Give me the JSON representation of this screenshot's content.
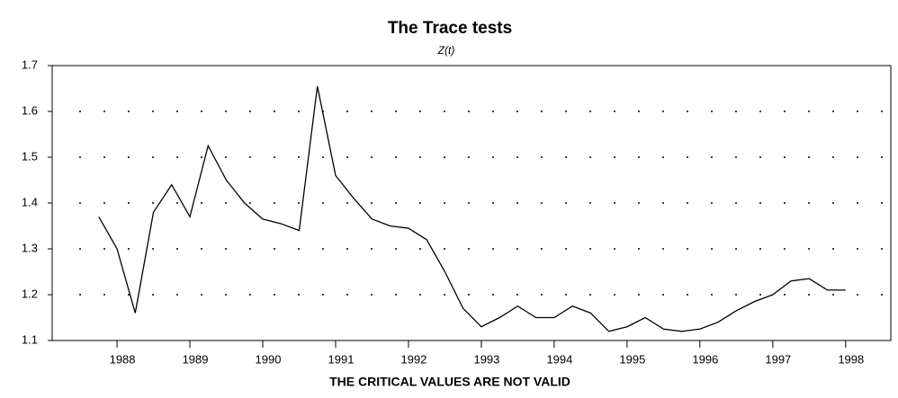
{
  "chart_data": {
    "type": "line",
    "title": "The Trace tests",
    "subtitle": "Z(t)",
    "xlabel": "THE CRITICAL VALUES ARE NOT VALID",
    "x": [
      1987.75,
      1988,
      1988.25,
      1988.5,
      1988.75,
      1989,
      1989.25,
      1989.5,
      1989.75,
      1990,
      1990.25,
      1990.5,
      1990.75,
      1991,
      1991.25,
      1991.5,
      1991.75,
      1992,
      1992.25,
      1992.5,
      1992.75,
      1993,
      1993.25,
      1993.5,
      1993.75,
      1994,
      1994.25,
      1994.5,
      1994.75,
      1995,
      1995.25,
      1995.5,
      1995.75,
      1996,
      1996.25,
      1996.5,
      1996.75,
      1997,
      1997.25,
      1997.5,
      1997.75,
      1998
    ],
    "series": [
      {
        "name": "Z(t)",
        "color": "#000000",
        "values": [
          1.37,
          1.3,
          1.16,
          1.38,
          1.44,
          1.37,
          1.525,
          1.45,
          1.4,
          1.365,
          1.355,
          1.34,
          1.655,
          1.46,
          1.41,
          1.365,
          1.35,
          1.345,
          1.32,
          1.25,
          1.17,
          1.13,
          1.15,
          1.175,
          1.15,
          1.15,
          1.175,
          1.16,
          1.12,
          1.13,
          1.15,
          1.125,
          1.12,
          1.125,
          1.14,
          1.165,
          1.185,
          1.2,
          1.23,
          1.235,
          1.21,
          1.21
        ]
      }
    ],
    "xlim": [
      1987.11,
      1998.62
    ],
    "ylim": [
      1.1,
      1.7
    ],
    "xticks": [
      1988,
      1989,
      1990,
      1991,
      1992,
      1993,
      1994,
      1995,
      1996,
      1997,
      1998
    ],
    "yticks": [
      1.1,
      1.2,
      1.3,
      1.4,
      1.5,
      1.6,
      1.7
    ],
    "grid": true
  }
}
